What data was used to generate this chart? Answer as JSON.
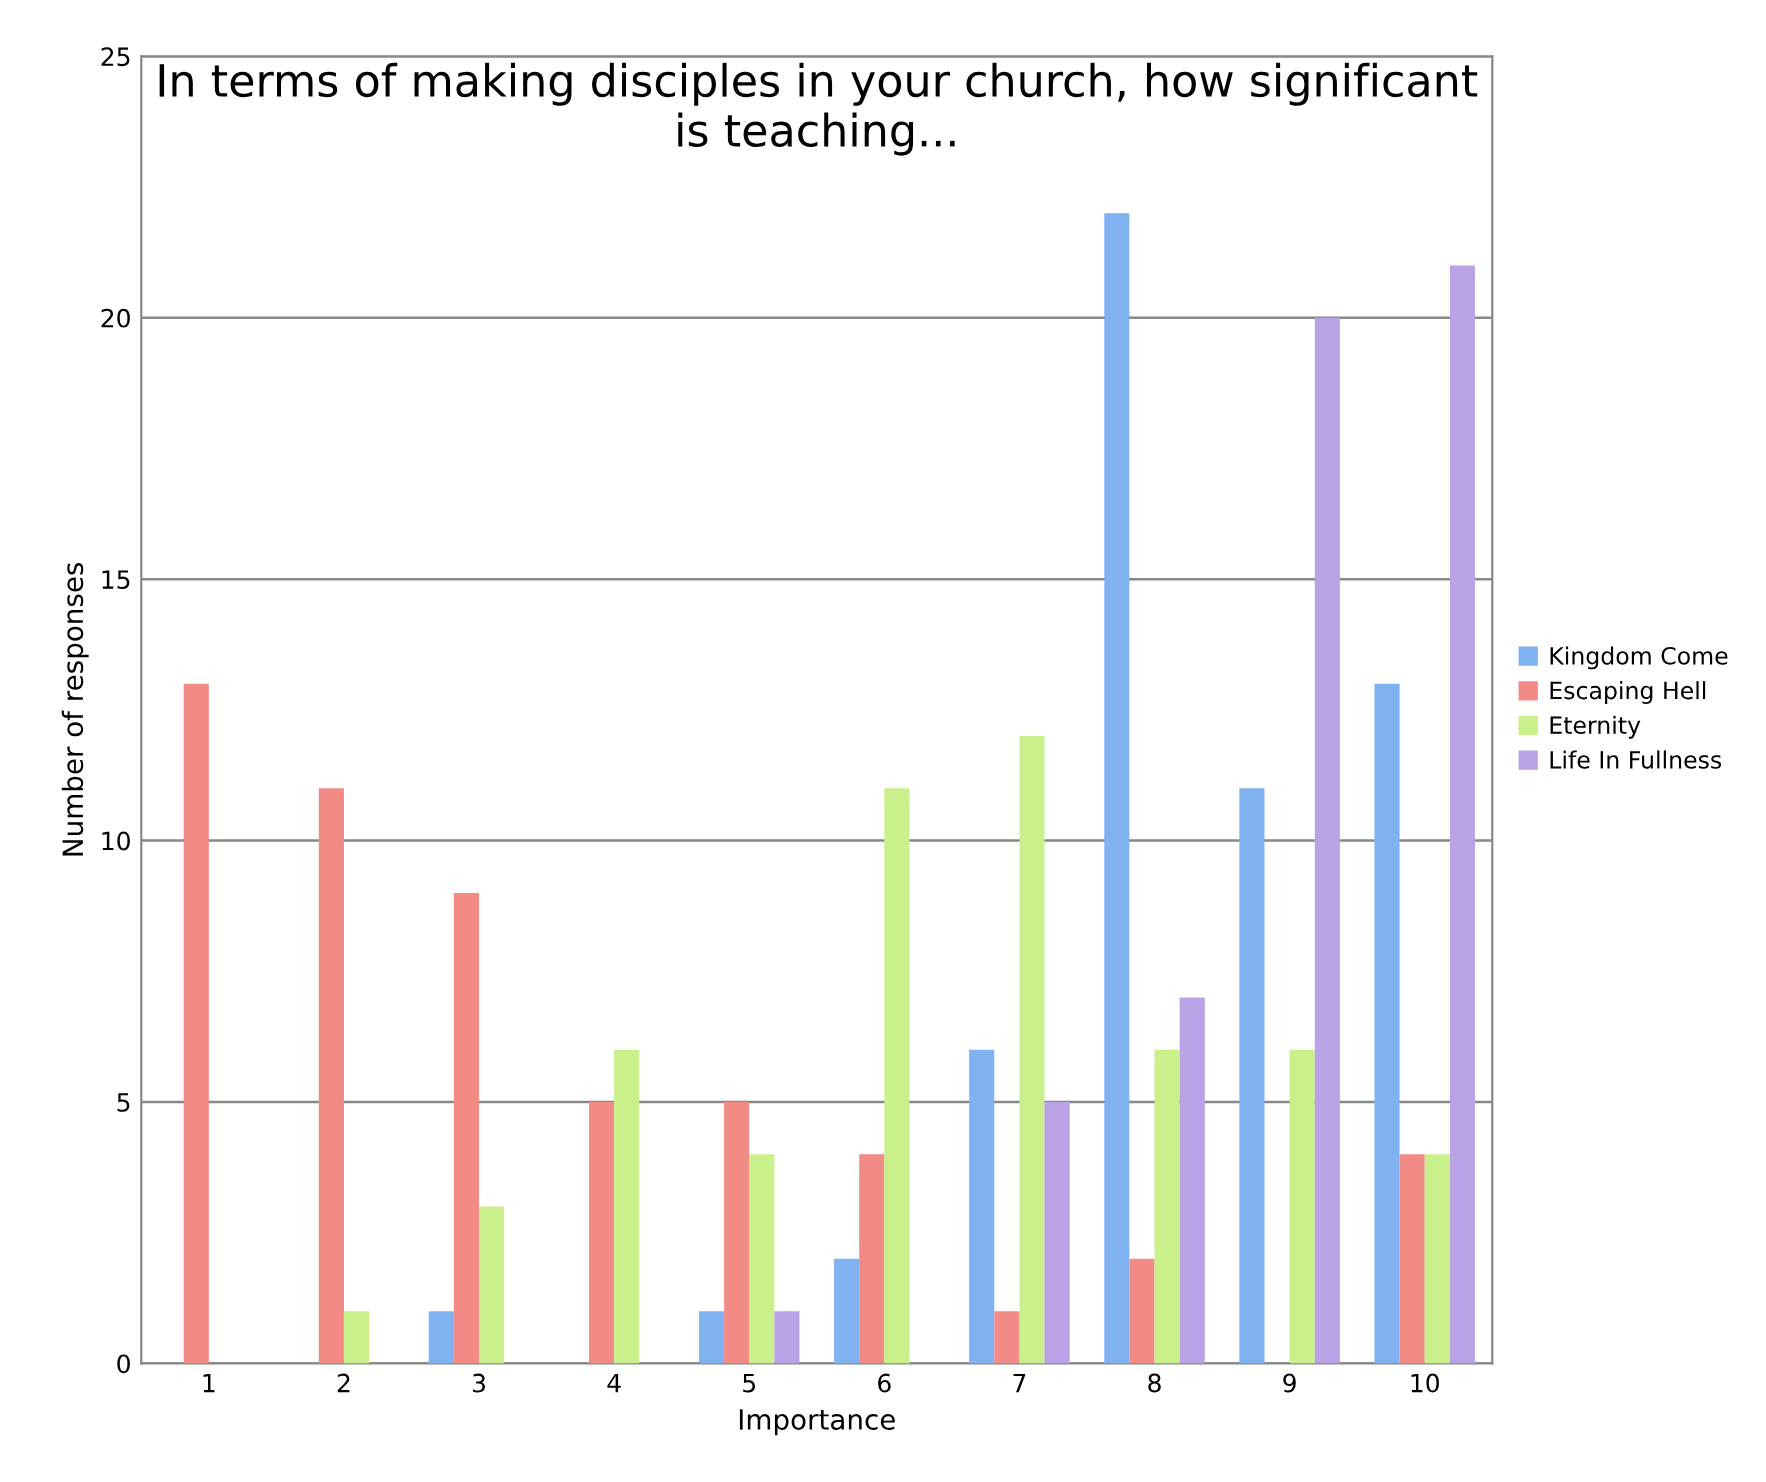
{
  "chart_data": {
    "type": "bar",
    "title": "In terms of making disciples in your church, how significant\nis teaching...",
    "xlabel": "Importance",
    "ylabel": "Number of responses",
    "categories": [
      "1",
      "2",
      "3",
      "4",
      "5",
      "6",
      "7",
      "8",
      "9",
      "10"
    ],
    "series": [
      {
        "name": "Kingdom Come",
        "color": "#80b2f2",
        "values": [
          0,
          0,
          1,
          0,
          1,
          2,
          6,
          22,
          11,
          13
        ]
      },
      {
        "name": "Escaping Hell",
        "color": "#f28a86",
        "values": [
          13,
          11,
          9,
          5,
          5,
          4,
          1,
          2,
          0,
          4
        ]
      },
      {
        "name": "Eternity",
        "color": "#c9f08a",
        "values": [
          0,
          1,
          3,
          6,
          4,
          11,
          12,
          6,
          6,
          4
        ]
      },
      {
        "name": "Life In Fullness",
        "color": "#b9a2e6",
        "values": [
          0,
          0,
          0,
          0,
          1,
          0,
          5,
          7,
          20,
          21
        ]
      }
    ],
    "ylim": [
      0,
      25
    ],
    "yticks": [
      0,
      5,
      10,
      15,
      20,
      25
    ],
    "grid": "y",
    "legend": "right"
  }
}
